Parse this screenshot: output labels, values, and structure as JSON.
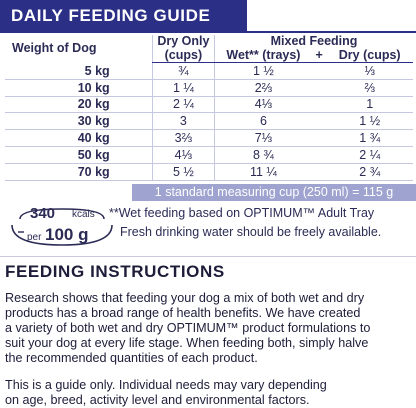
{
  "guide": {
    "title": "DAILY FEEDING GUIDE",
    "headers": {
      "weight": "Weight of Dog",
      "dry_only_1": "Dry Only",
      "dry_only_2": "(cups)",
      "mixed": "Mixed Feeding",
      "wet": "Wet** (trays)",
      "plus": "+",
      "dry": "Dry (cups)"
    },
    "rows": [
      {
        "weight": "5 kg",
        "dry_only": "¾",
        "wet": "1 ½",
        "dry": "⅓"
      },
      {
        "weight": "10 kg",
        "dry_only": "1 ¼",
        "wet": "2⅔",
        "dry": "⅔"
      },
      {
        "weight": "20 kg",
        "dry_only": "2 ¼",
        "wet": "4⅓",
        "dry": "1"
      },
      {
        "weight": "30 kg",
        "dry_only": "3",
        "wet": "6",
        "dry": "1 ½"
      },
      {
        "weight": "40 kg",
        "dry_only": "3⅔",
        "wet": "7⅓",
        "dry": "1 ¾"
      },
      {
        "weight": "50 kg",
        "dry_only": "4⅓",
        "wet": "8 ¾",
        "dry": "2 ¼"
      },
      {
        "weight": "70 kg",
        "dry_only": "5 ½",
        "wet": "11 ¼",
        "dry": "2 ¾"
      }
    ],
    "cup_note": "1 standard measuring cup (250 ml) = 115 g"
  },
  "kcal": {
    "value": "340",
    "unit": "kcals",
    "per": "per",
    "amount": "100 g"
  },
  "notes": {
    "wet_note": "**Wet feeding based on OPTIMUM™ Adult Tray",
    "water_note": "Fresh drinking water should be freely available."
  },
  "instructions": {
    "title": "FEEDING INSTRUCTIONS",
    "para1_lines": [
      "Research shows that feeding your dog a mix of both wet and dry",
      "products has a broad range of health benefits.  We have created",
      "a variety of both wet and dry OPTIMUM™ product formulations to",
      "suit your dog at every life stage.  When feeding both, simply halve",
      "the recommended quantities of each product."
    ],
    "para2_lines": [
      "This is a guide only.  Individual needs may vary depending",
      "on age, breed, activity level and environmental factors."
    ]
  },
  "colors": {
    "brand_navy": "#2b2f86",
    "cup_bar": "#9ea3cf"
  }
}
